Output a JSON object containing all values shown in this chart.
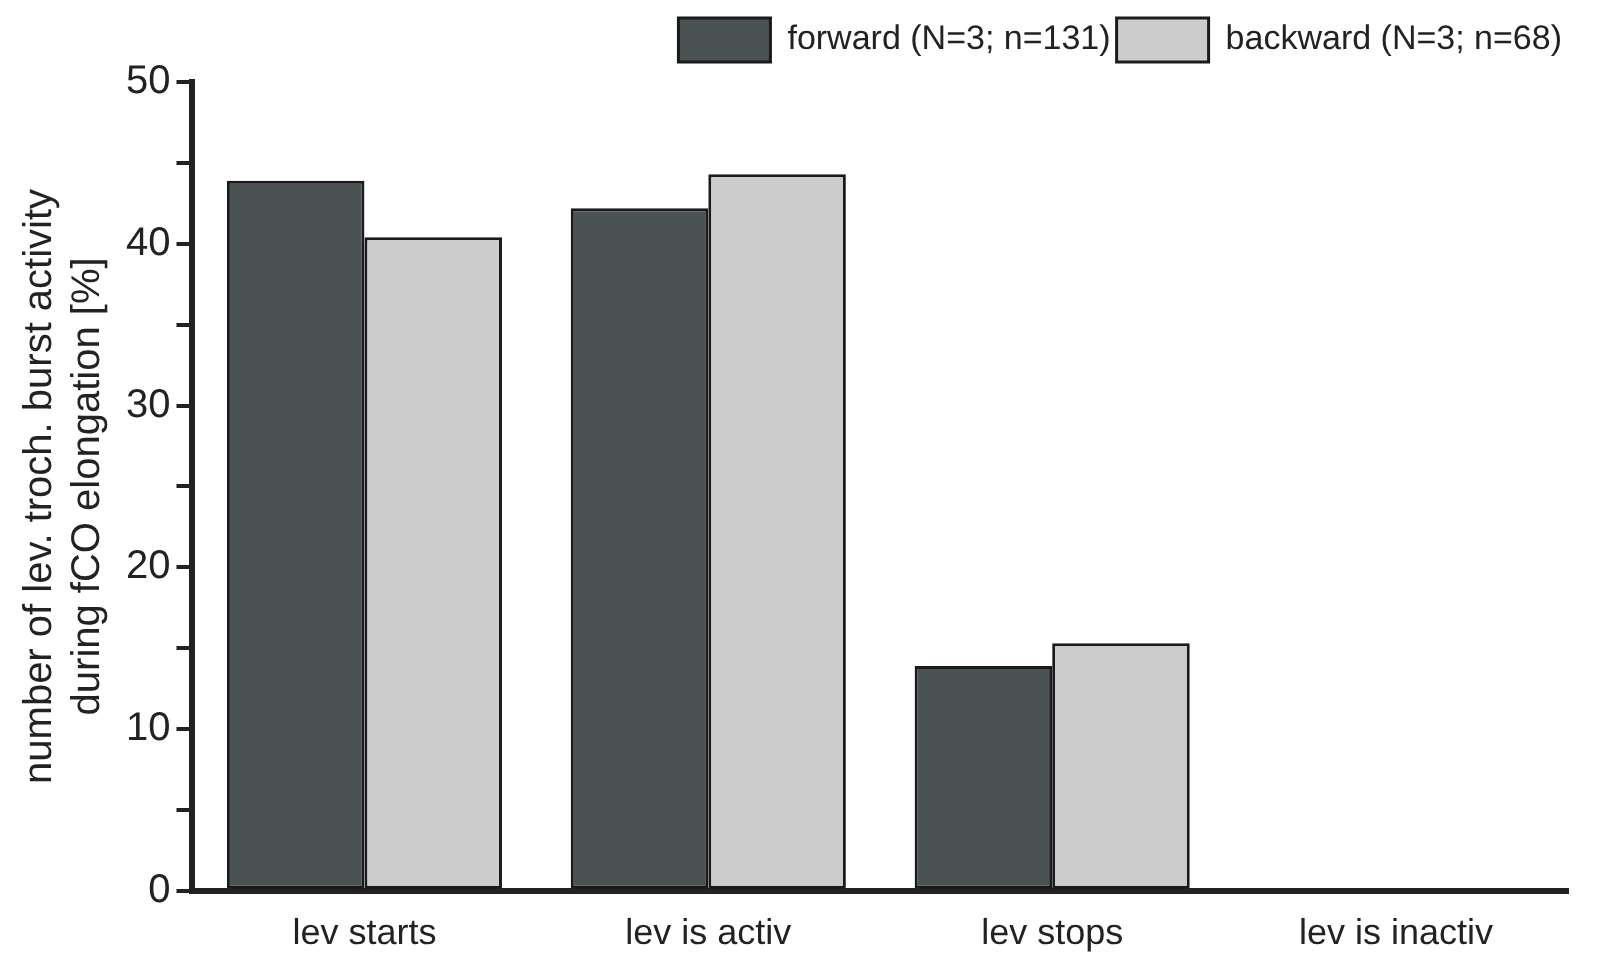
{
  "chart_data": {
    "type": "bar",
    "ylabel": "number of lev. troch. burst activity\nduring fCO elongation [%]",
    "categories": [
      "lev starts",
      "lev is activ",
      "lev stops",
      "lev is inactiv"
    ],
    "series": [
      {
        "name": "forward (N=3; n=131)",
        "color": "#4a5253",
        "values": [
          43.9,
          42.2,
          13.9,
          0
        ]
      },
      {
        "name": "backward (N=3; n=68)",
        "color": "#cccccc",
        "values": [
          40.4,
          44.3,
          15.3,
          0
        ]
      }
    ],
    "ylim": [
      0,
      50
    ],
    "yticks": [
      0,
      {
        "value": 5,
        "label": null
      },
      10,
      {
        "value": 15,
        "label": null
      },
      20,
      {
        "value": 25,
        "label": null
      },
      30,
      {
        "value": 35,
        "label": null
      },
      40,
      {
        "value": 45,
        "label": null
      },
      50
    ],
    "grid": false,
    "legend": "top right"
  }
}
